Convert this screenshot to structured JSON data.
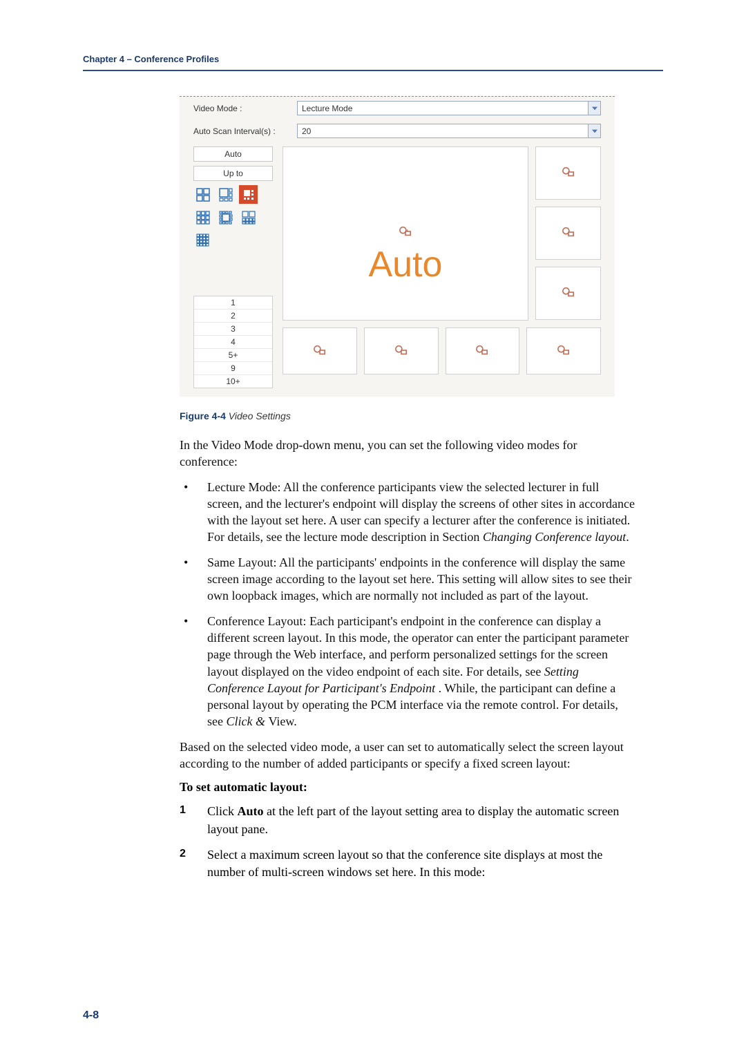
{
  "header": {
    "chapter": "Chapter 4 – Conference Profiles"
  },
  "figure": {
    "field1_label": "Video Mode :",
    "field1_value": "Lecture Mode",
    "field2_label": "Auto Scan Interval(s) :",
    "field2_value": "20",
    "auto_btn": "Auto",
    "upto_btn": "Up to",
    "auto_text": "Auto",
    "nums": [
      "1",
      "2",
      "3",
      "4",
      "5+",
      "9",
      "10+"
    ],
    "layout_icons": {
      "count": 7,
      "selected_index": 2,
      "outline_color": "#2d6fb5",
      "selected_bg": "#d44a2a",
      "selected_fg": "#ffffff"
    },
    "cam_icon_color": "#c0705a",
    "caption_num": "Figure 4-4",
    "caption_title": " Video Settings"
  },
  "intro": "In the Video Mode drop-down menu, you can set the following video modes for conference:",
  "bullets": [
    {
      "lead": "Lecture Mode: All the conference participants view the selected lecturer in full screen, and the lecturer's endpoint will display the screens of other sites in accordance with the layout set here. A user can specify a lecturer after the conference is initiated. For details, see the lecture mode description in Section ",
      "italic": "Changing Conference layout",
      "tail": "."
    },
    {
      "lead": "Same Layout: All the participants' endpoints in the conference will display the same screen image according to the layout set here. This setting will allow sites to see their own loopback images, which are normally not included as part of the layout.",
      "italic": "",
      "tail": ""
    },
    {
      "lead": "Conference Layout: Each participant's endpoint in the conference can display a different screen layout. In this mode, the operator can enter the participant parameter page through the Web interface, and perform personalized settings for the screen layout displayed on the video endpoint of each site. For details, see ",
      "italic": "Setting Conference Layout for Participant's Endpoint ",
      "tail": ". While, the participant can define a personal layout by operating the PCM interface via the remote control. For details, see ",
      "italic2": "Click & ",
      "tail2": "View."
    }
  ],
  "para2": "Based on the selected video mode, a user can set to automatically select the screen layout according to the number of added participants or specify a fixed screen layout:",
  "subhead": "To set automatic layout:",
  "steps": [
    {
      "n": "1",
      "pre": "Click ",
      "bold": "Auto",
      "post": " at the left part of the layout setting area to display the automatic screen layout pane."
    },
    {
      "n": "2",
      "pre": "Select a maximum screen layout so that the conference site displays at most the number of multi-screen windows set here. In this mode:",
      "bold": "",
      "post": ""
    }
  ],
  "pagenum": "4-8",
  "colors": {
    "header_rule": "#2a4a8e",
    "auto_text": "#e8882a"
  }
}
